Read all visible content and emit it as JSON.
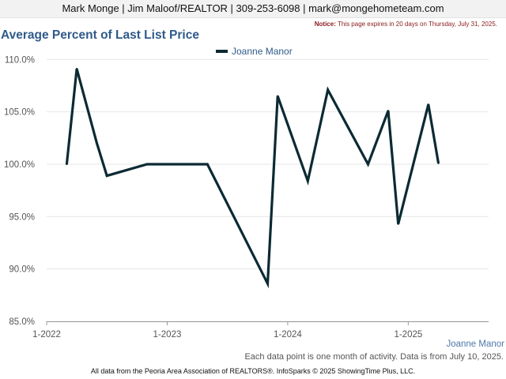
{
  "header": {
    "contact": "Mark Monge | Jim Maloof/REALTOR | 309-253-6098 | mark@mongehometeam.com"
  },
  "notice": {
    "label": "Notice:",
    "text": "This page expires in 20 days on Thursday, July 31, 2025."
  },
  "footer": {
    "series_label": "Joanne Manor",
    "note": "Each data point is one month of activity. Data is from July 10, 2025.",
    "source": "All data from the Peoria Area Association of REALTORS®. InfoSparks © 2025 ShowingTime Plus, LLC."
  },
  "colors": {
    "line": "#0c2a33",
    "title": "#2f5a8a",
    "grid": "#e6e6e6",
    "axis": "#999999"
  },
  "chart_data": {
    "type": "line",
    "title": "Average Percent of Last List Price",
    "grid": true,
    "legend_position": "top-center",
    "x_ticks": [
      "1-2022",
      "1-2023",
      "1-2024",
      "1-2025"
    ],
    "y_ticks": [
      "85.0%",
      "90.0%",
      "95.0%",
      "100.0%",
      "105.0%",
      "110.0%"
    ],
    "xlim": [
      "2022-01",
      "2025-09"
    ],
    "ylim": [
      85,
      111
    ],
    "series": [
      {
        "name": "Joanne Manor",
        "points": [
          {
            "x": "2022-03",
            "y": 100.0
          },
          {
            "x": "2022-04",
            "y": 109.1
          },
          {
            "x": "2022-06",
            "y": 102.0
          },
          {
            "x": "2022-07",
            "y": 98.9
          },
          {
            "x": "2022-11",
            "y": 100.0
          },
          {
            "x": "2023-01",
            "y": 100.0
          },
          {
            "x": "2023-05",
            "y": 100.0
          },
          {
            "x": "2023-11",
            "y": 88.6
          },
          {
            "x": "2023-12",
            "y": 106.5
          },
          {
            "x": "2024-03",
            "y": 98.4
          },
          {
            "x": "2024-05",
            "y": 107.1
          },
          {
            "x": "2024-09",
            "y": 100.0
          },
          {
            "x": "2024-11",
            "y": 105.1
          },
          {
            "x": "2024-12",
            "y": 94.3
          },
          {
            "x": "2025-03",
            "y": 105.7
          },
          {
            "x": "2025-04",
            "y": 100.1
          }
        ]
      }
    ]
  }
}
